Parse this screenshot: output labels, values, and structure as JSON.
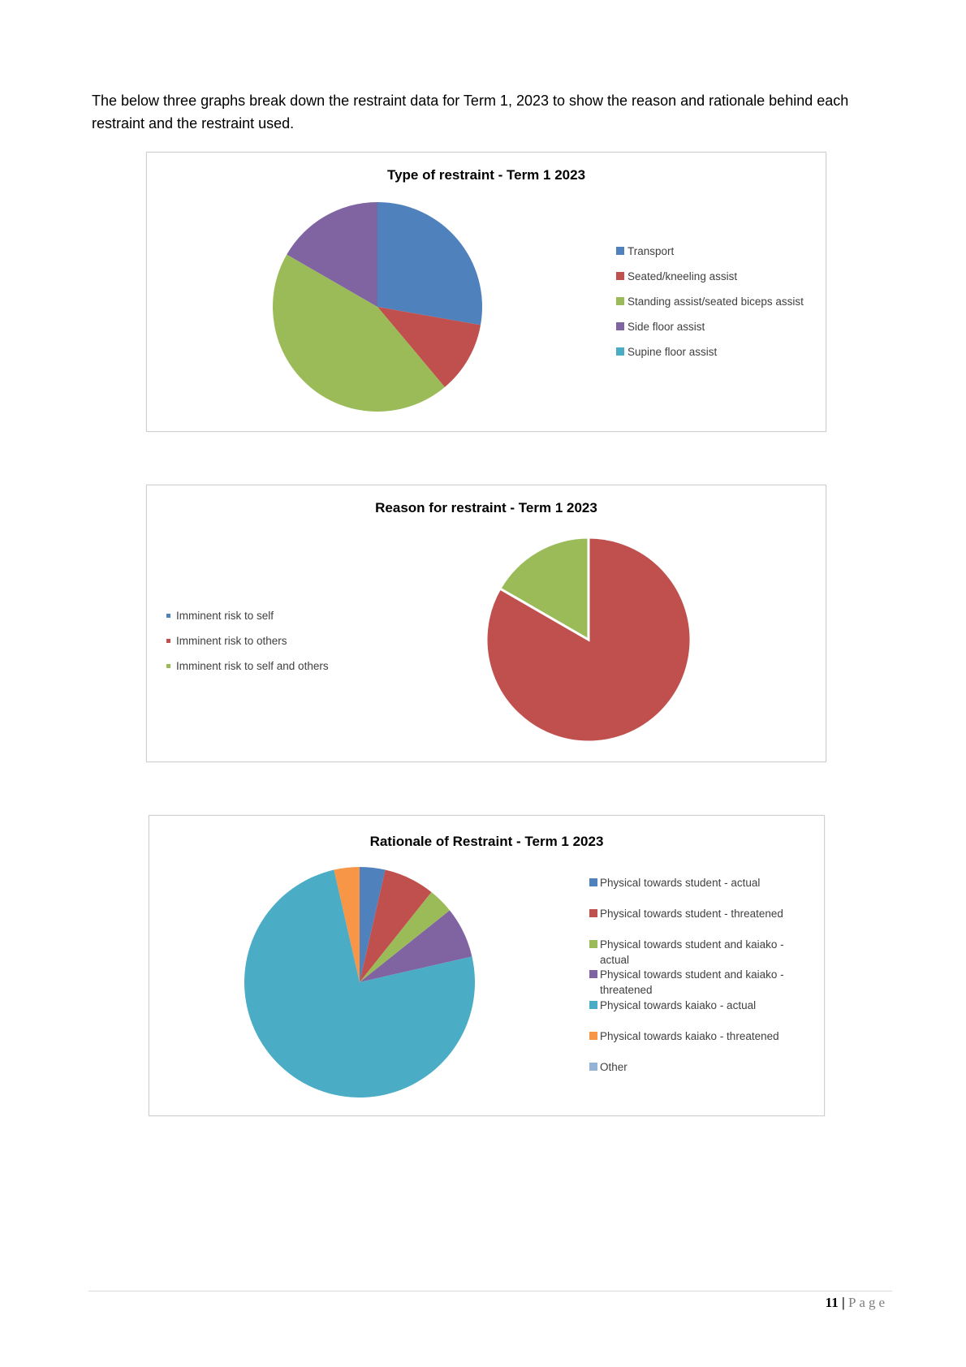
{
  "intro_text": "The below three graphs break down the restraint data for Term 1, 2023 to show the reason and rationale behind each restraint and the restraint used.",
  "chart_data": [
    {
      "type": "pie",
      "title": "Type of restraint - Term 1 2023",
      "legend_position": "right",
      "series": [
        {
          "name": "Transport",
          "value": 5,
          "color": "#4f81bd"
        },
        {
          "name": "Seated/kneeling assist",
          "value": 2,
          "color": "#c0504d"
        },
        {
          "name": "Standing assist/seated biceps assist",
          "value": 8,
          "color": "#9bbb59"
        },
        {
          "name": "Side floor assist",
          "value": 3,
          "color": "#8064a2"
        },
        {
          "name": "Supine floor assist",
          "value": 0,
          "color": "#4bacc6"
        }
      ]
    },
    {
      "type": "pie",
      "title": "Reason for restraint - Term 1 2023",
      "legend_position": "left",
      "series": [
        {
          "name": "Imminent risk to self",
          "value": 0,
          "color": "#4f81bd"
        },
        {
          "name": "Imminent risk to others",
          "value": 5,
          "color": "#c0504d"
        },
        {
          "name": "Imminent risk to self and others",
          "value": 1,
          "color": "#9bbb59"
        }
      ]
    },
    {
      "type": "pie",
      "title": "Rationale of Restraint - Term 1 2023",
      "legend_position": "right",
      "series": [
        {
          "name": "Physical towards student  - actual",
          "value": 1,
          "color": "#4f81bd"
        },
        {
          "name": "Physical towards student - threatened",
          "value": 2,
          "color": "#c0504d"
        },
        {
          "name": "Physical towards student and kaiako - actual",
          "value": 1,
          "color": "#9bbb59"
        },
        {
          "name": "Physical towards student and kaiako - threatened",
          "value": 2,
          "color": "#8064a2"
        },
        {
          "name": "Physical towards kaiako  - actual",
          "value": 21,
          "color": "#4bacc6"
        },
        {
          "name": "Physical towards kaiako  - threatened",
          "value": 1,
          "color": "#f79646"
        },
        {
          "name": "Other",
          "value": 0,
          "color": "#95b3d7"
        }
      ]
    }
  ],
  "footer": {
    "page_number": "11",
    "separator": "|",
    "page_word": "Page"
  }
}
